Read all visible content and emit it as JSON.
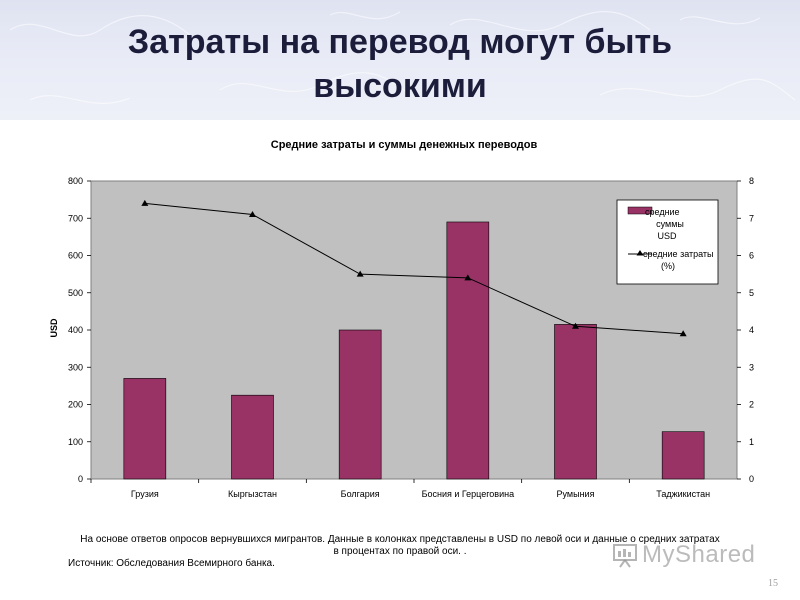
{
  "slide": {
    "title_line1": "Затраты на перевод могут быть",
    "title_line2": "высокими",
    "footnote_line1": "На основе ответов опросов вернувшихся мигрантов.  Данные в колонках представлены в USD по левой оси и данные о средних затратах",
    "footnote_line2": "в процентах по правой оси. .",
    "source": "Источник: Обследования Всемирного банка.",
    "watermark": "MyShared",
    "page_number": "15"
  },
  "colors": {
    "bar": "#993366",
    "plot_bg": "#c0c0c0",
    "line": "#000000",
    "title": "#1b1d3a"
  },
  "chart_data": {
    "type": "bar",
    "title": "Средние затраты и суммы денежных переводов",
    "categories": [
      "Грузия",
      "Кыргызстан",
      "Болгария",
      "Босния и Герцеговина",
      "Румыния",
      "Таджикистан"
    ],
    "series": [
      {
        "name": "средние суммы USD",
        "type": "bar",
        "axis": "left",
        "values": [
          270,
          225,
          400,
          690,
          415,
          127
        ]
      },
      {
        "name": "средние затраты (%)",
        "type": "line",
        "axis": "right",
        "values": [
          7.4,
          7.1,
          5.5,
          5.4,
          4.1,
          3.9
        ]
      }
    ],
    "ylabel": "USD",
    "ylim": [
      0,
      800
    ],
    "yticks": [
      "0",
      "100",
      "200",
      "300",
      "400",
      "500",
      "600",
      "700",
      "800"
    ],
    "y2lim": [
      0,
      8
    ],
    "y2ticks": [
      "0",
      "1",
      "2",
      "3",
      "4",
      "5",
      "6",
      "7",
      "8"
    ],
    "legend": {
      "position": "top-right",
      "bar_label_lines": [
        "средние",
        "суммы",
        "USD"
      ],
      "line_label_lines": [
        "средние затраты",
        "(%)"
      ]
    },
    "grid": false
  }
}
